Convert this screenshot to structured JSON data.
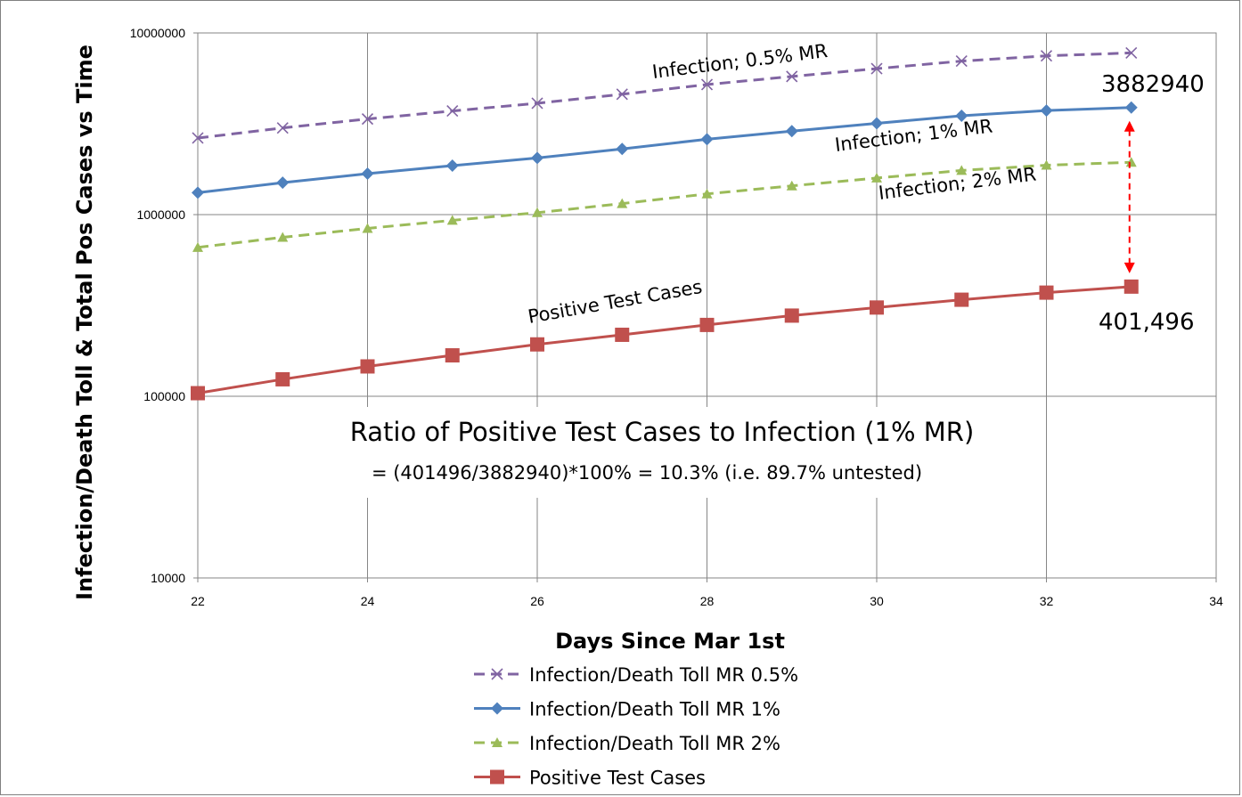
{
  "chart_data": {
    "type": "line",
    "xlabel": "Days Since Mar 1st",
    "ylabel": "Infection/Death Toll  & Total Pos Cases vs Time",
    "y_scale": "log",
    "ylim": [
      10000,
      10000000
    ],
    "xlim": [
      22,
      34
    ],
    "x_ticks": [
      "22",
      "24",
      "26",
      "28",
      "30",
      "32",
      "34"
    ],
    "y_ticks": [
      "10000",
      "100000",
      "1000000",
      "10000000"
    ],
    "grid": true,
    "legend_position": "bottom",
    "x": [
      22,
      23,
      24,
      25,
      26,
      27,
      28,
      29,
      30,
      31,
      32,
      33
    ],
    "series": [
      {
        "name": "Infection/Death Toll MR 0.5%",
        "color": "#8064a2",
        "dash": true,
        "marker": "x",
        "values": [
          2640000,
          3000000,
          3360000,
          3720000,
          4100000,
          4600000,
          5200000,
          5760000,
          6360000,
          7000000,
          7480000,
          7765880
        ]
      },
      {
        "name": "Infection/Death Toll MR 1%",
        "color": "#4f81bd",
        "dash": false,
        "marker": "diamond",
        "values": [
          1320000,
          1500000,
          1680000,
          1860000,
          2050000,
          2300000,
          2600000,
          2880000,
          3180000,
          3500000,
          3740000,
          3882940
        ]
      },
      {
        "name": "Infection/Death Toll MR 2%",
        "color": "#9bbb59",
        "dash": true,
        "marker": "triangle",
        "values": [
          660000,
          750000,
          840000,
          930000,
          1025000,
          1150000,
          1300000,
          1440000,
          1590000,
          1750000,
          1870000,
          1941470
        ]
      },
      {
        "name": "Positive Test Cases",
        "color": "#c0504d",
        "dash": false,
        "marker": "square",
        "values": [
          104000,
          124000,
          146000,
          168000,
          193000,
          218000,
          247000,
          278000,
          308000,
          340000,
          372000,
          401496
        ]
      }
    ],
    "annotations": {
      "label_05": "Infection; 0.5% MR",
      "label_1": "Infection; 1% MR",
      "label_2": "Infection; 2% MR",
      "label_pos": "Positive Test Cases",
      "value_top": "3882940",
      "value_bottom": "401,496",
      "ratio_title": "Ratio of Positive Test Cases to Infection (1% MR)",
      "ratio_formula": "= (401496/3882940)*100% = 10.3%  (i.e. 89.7% untested)",
      "arrow_color": "#ff0000"
    }
  }
}
